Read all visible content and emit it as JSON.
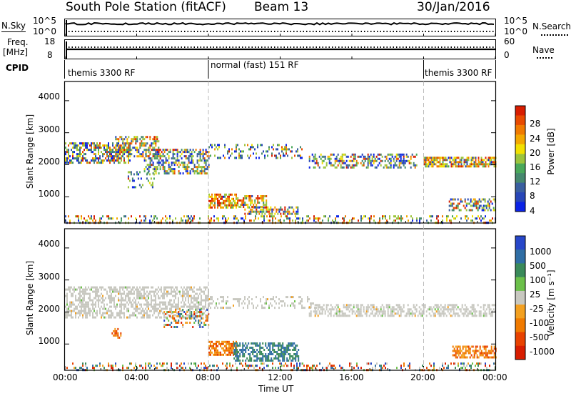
{
  "header": {
    "station": "South Pole Station (fitACF)",
    "beam": "Beam 13",
    "date": "30/Jan/2016"
  },
  "top_panels": {
    "nsky_label": "N.Sky",
    "nsky_ticks": [
      "10^5",
      "10^0"
    ],
    "nsearch_label": "N.Search",
    "nsearch_ticks": [
      "10^5",
      "10^0"
    ],
    "freq_label_line1": "Freq.",
    "freq_label_line2": "[MHz]",
    "freq_ticks": [
      "18",
      "8"
    ],
    "nave_label": "Nave",
    "nave_ticks": [
      "60",
      "0"
    ],
    "cpid_label": "CPID",
    "cpid_segments": [
      {
        "label": "themis 3300 RF",
        "start": 0,
        "end": 8
      },
      {
        "label": "normal (fast) 151 RF",
        "start": 8,
        "end": 20
      },
      {
        "label": "themis 3300 RF",
        "start": 20,
        "end": 24
      }
    ]
  },
  "chart_data": [
    {
      "type": "heatmap",
      "name": "power",
      "ylabel": "Slant Range [km]",
      "yticks": [
        1000,
        2000,
        3000,
        4000
      ],
      "ylim": [
        180,
        4600
      ],
      "xlim": [
        0,
        24
      ],
      "colorbar": {
        "label": "Power [dB]",
        "ticks": [
          "28",
          "24",
          "20",
          "16",
          "12",
          "8",
          "4"
        ],
        "colors": [
          "#0b23e6",
          "#2846b8",
          "#3a5fa0",
          "#46886e",
          "#4aa85a",
          "#9cc43c",
          "#f2e000",
          "#f3a800",
          "#f07a00",
          "#e84a00",
          "#d81d00"
        ]
      },
      "bands": [
        {
          "x0": 0,
          "x1": 3.6,
          "y0": 2050,
          "y1": 2700,
          "dens": 0.55,
          "mix": 0.35
        },
        {
          "x0": 2.8,
          "x1": 5.2,
          "y0": 2250,
          "y1": 2900,
          "dens": 0.55,
          "mix": 0.6
        },
        {
          "x0": 4.4,
          "x1": 8.0,
          "y0": 1700,
          "y1": 2500,
          "dens": 0.5,
          "mix": 0.3
        },
        {
          "x0": 3.5,
          "x1": 5.0,
          "y0": 1300,
          "y1": 1800,
          "dens": 0.25,
          "mix": 0.1
        },
        {
          "x0": 8.0,
          "x1": 9.6,
          "y0": 650,
          "y1": 1100,
          "dens": 0.65,
          "mix": 0.95
        },
        {
          "x0": 9.6,
          "x1": 11.2,
          "y0": 700,
          "y1": 1050,
          "dens": 0.55,
          "mix": 0.85
        },
        {
          "x0": 10.0,
          "x1": 13.0,
          "y0": 450,
          "y1": 700,
          "dens": 0.65,
          "mix": 0.55
        },
        {
          "x0": 8.0,
          "x1": 13.2,
          "y0": 2200,
          "y1": 2650,
          "dens": 0.25,
          "mix": 0.2
        },
        {
          "x0": 13.6,
          "x1": 19.6,
          "y0": 1900,
          "y1": 2350,
          "dens": 0.45,
          "mix": 0.3
        },
        {
          "x0": 20.0,
          "x1": 24.0,
          "y0": 1950,
          "y1": 2250,
          "dens": 0.75,
          "mix": 0.6
        },
        {
          "x0": 21.4,
          "x1": 24.0,
          "y0": 550,
          "y1": 950,
          "dens": 0.55,
          "mix": 0.4
        },
        {
          "x0": 0,
          "x1": 24,
          "y0": 180,
          "y1": 420,
          "dens": 0.28,
          "mix": 0.5
        }
      ]
    },
    {
      "type": "heatmap",
      "name": "velocity",
      "ylabel": "Slant Range [km]",
      "yticks": [
        1000,
        2000,
        3000,
        4000
      ],
      "ylim": [
        180,
        4600
      ],
      "xlim": [
        0,
        24
      ],
      "xticks": [
        "00:00",
        "04:00",
        "08:00",
        "12:00",
        "16:00",
        "20:00",
        "00:00"
      ],
      "xlabel": "Time UT",
      "colorbar": {
        "label": "Velocity [m s⁻¹]",
        "ticks": [
          "1000",
          "500",
          "100",
          "25",
          "-25",
          "-100",
          "-500",
          "-1000"
        ],
        "colors": [
          "#2747c9",
          "#2f6ea5",
          "#3a8a5a",
          "#6cc04a",
          "#c8c8c0",
          "#f3a020",
          "#f07a00",
          "#e84200",
          "#d81d00"
        ]
      },
      "bands": [
        {
          "x0": 0,
          "x1": 8.0,
          "y0": 1800,
          "y1": 2800,
          "kind": "grey",
          "dens": 0.55
        },
        {
          "x0": 8.0,
          "x1": 14.0,
          "y0": 2100,
          "y1": 2500,
          "kind": "grey",
          "dens": 0.3
        },
        {
          "x0": 13.6,
          "x1": 24.0,
          "y0": 1850,
          "y1": 2250,
          "kind": "grey",
          "dens": 0.55
        },
        {
          "x0": 2.6,
          "x1": 3.1,
          "y0": 1200,
          "y1": 1500,
          "kind": "orange",
          "dens": 0.55
        },
        {
          "x0": 5.5,
          "x1": 8.0,
          "y0": 1500,
          "y1": 2100,
          "kind": "mixed",
          "dens": 0.3
        },
        {
          "x0": 8.0,
          "x1": 9.6,
          "y0": 650,
          "y1": 1100,
          "kind": "orange",
          "dens": 0.7
        },
        {
          "x0": 9.4,
          "x1": 13.0,
          "y0": 480,
          "y1": 1050,
          "kind": "green",
          "dens": 0.6
        },
        {
          "x0": 21.6,
          "x1": 24.0,
          "y0": 550,
          "y1": 950,
          "kind": "orange",
          "dens": 0.65
        },
        {
          "x0": 0,
          "x1": 24,
          "y0": 180,
          "y1": 420,
          "kind": "mixed",
          "dens": 0.25
        }
      ]
    }
  ]
}
